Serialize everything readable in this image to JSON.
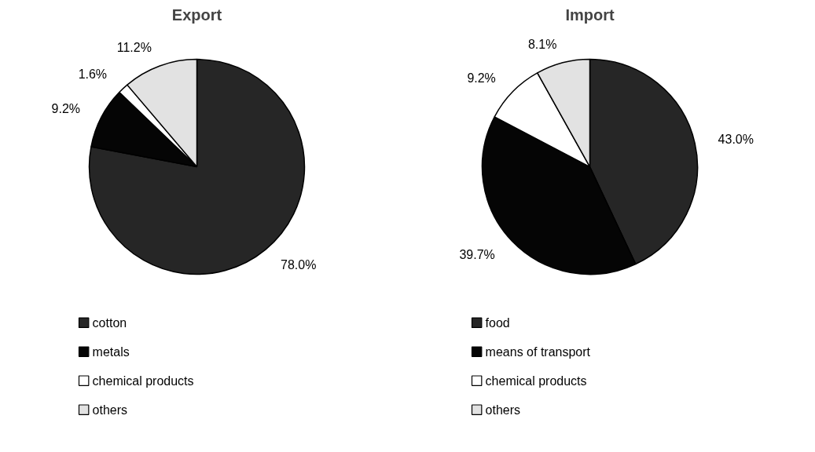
{
  "chart_data": [
    {
      "type": "pie",
      "title": "Export",
      "categories": [
        "cotton",
        "metals",
        "chemical products",
        "others"
      ],
      "values": [
        78.0,
        9.2,
        1.6,
        11.2
      ],
      "colors": [
        "#262626",
        "#050505",
        "#ffffff",
        "#e2e2e2"
      ],
      "value_labels": [
        "78.0%",
        "9.2%",
        "1.6%",
        "11.2%"
      ],
      "legend": "bottom"
    },
    {
      "type": "pie",
      "title": "Import",
      "categories": [
        "food",
        "means of transport",
        "chemical products",
        "others"
      ],
      "values": [
        43.0,
        39.7,
        9.2,
        8.1
      ],
      "colors": [
        "#262626",
        "#050505",
        "#ffffff",
        "#e2e2e2"
      ],
      "value_labels": [
        "43.0%",
        "39.7%",
        "9.2%",
        "8.1%"
      ],
      "legend": "bottom"
    }
  ]
}
